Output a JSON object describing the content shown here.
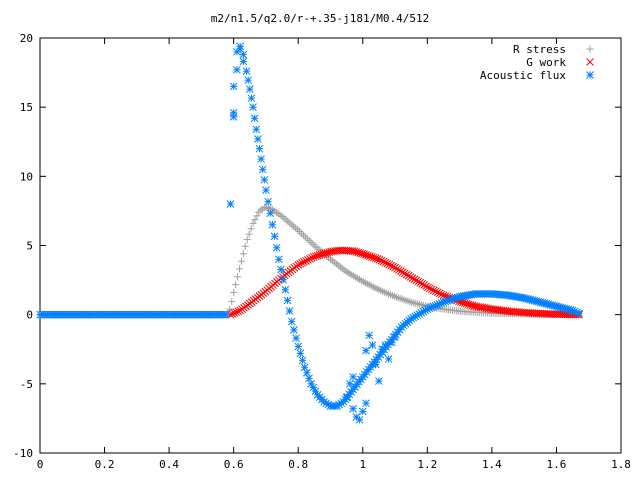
{
  "chart_data": {
    "type": "scatter",
    "title": "m2/n1.5/q2.0/r-+.35-j181/M0.4/512",
    "xlabel": "",
    "ylabel": "",
    "xlim": [
      0,
      1.8
    ],
    "ylim": [
      -10,
      20
    ],
    "x_ticks": [
      "0",
      "0.2",
      "0.4",
      "0.6",
      "0.8",
      "1",
      "1.2",
      "1.4",
      "1.6",
      "1.8"
    ],
    "y_ticks": [
      "-10",
      "-5",
      "0",
      "5",
      "10",
      "15",
      "20"
    ],
    "grid": false,
    "legend_position": "top-right",
    "series": [
      {
        "name": "R stress",
        "color": "#a0a0a0",
        "marker": "plus",
        "x_range": [
          0,
          1.67
        ],
        "points": [
          [
            0,
            0
          ],
          [
            0.58,
            0
          ],
          [
            0.59,
            0.5
          ],
          [
            0.6,
            1.6
          ],
          [
            0.62,
            3.5
          ],
          [
            0.64,
            5.3
          ],
          [
            0.66,
            6.6
          ],
          [
            0.68,
            7.5
          ],
          [
            0.7,
            7.8
          ],
          [
            0.72,
            7.6
          ],
          [
            0.75,
            7.1
          ],
          [
            0.8,
            6.1
          ],
          [
            0.85,
            5.0
          ],
          [
            0.9,
            4.0
          ],
          [
            0.95,
            3.1
          ],
          [
            1.0,
            2.4
          ],
          [
            1.05,
            1.8
          ],
          [
            1.1,
            1.3
          ],
          [
            1.15,
            0.9
          ],
          [
            1.2,
            0.6
          ],
          [
            1.25,
            0.4
          ],
          [
            1.3,
            0.25
          ],
          [
            1.4,
            0.1
          ],
          [
            1.5,
            0.05
          ],
          [
            1.6,
            0.02
          ],
          [
            1.67,
            0
          ]
        ]
      },
      {
        "name": "G work",
        "color": "#ff0000",
        "marker": "cross",
        "x_range": [
          0.59,
          1.67
        ],
        "points": [
          [
            0.59,
            0
          ],
          [
            0.62,
            0.3
          ],
          [
            0.65,
            0.8
          ],
          [
            0.7,
            1.7
          ],
          [
            0.75,
            2.7
          ],
          [
            0.8,
            3.6
          ],
          [
            0.85,
            4.2
          ],
          [
            0.9,
            4.55
          ],
          [
            0.93,
            4.65
          ],
          [
            0.97,
            4.6
          ],
          [
            1.0,
            4.4
          ],
          [
            1.05,
            4.0
          ],
          [
            1.1,
            3.4
          ],
          [
            1.15,
            2.7
          ],
          [
            1.2,
            2.0
          ],
          [
            1.25,
            1.4
          ],
          [
            1.3,
            0.95
          ],
          [
            1.35,
            0.6
          ],
          [
            1.4,
            0.4
          ],
          [
            1.45,
            0.25
          ],
          [
            1.5,
            0.15
          ],
          [
            1.55,
            0.08
          ],
          [
            1.6,
            0.03
          ],
          [
            1.67,
            0
          ]
        ]
      },
      {
        "name": "Acoustic flux",
        "color": "#0080ff",
        "marker": "star",
        "x_range": [
          0,
          1.67
        ],
        "points": [
          [
            0,
            0
          ],
          [
            0.58,
            0
          ],
          [
            0.59,
            8.0
          ],
          [
            0.6,
            14.3
          ],
          [
            0.6,
            14.6
          ],
          [
            0.6,
            16.5
          ],
          [
            0.61,
            17.7
          ],
          [
            0.61,
            19.0
          ],
          [
            0.62,
            19.4
          ],
          [
            0.62,
            19.2
          ],
          [
            0.63,
            18.8
          ],
          [
            0.63,
            18.3
          ],
          [
            0.64,
            17.6
          ],
          [
            0.65,
            16.3
          ],
          [
            0.66,
            15.0
          ],
          [
            0.67,
            13.4
          ],
          [
            0.68,
            12.0
          ],
          [
            0.69,
            10.5
          ],
          [
            0.7,
            9.0
          ],
          [
            0.72,
            6.5
          ],
          [
            0.74,
            4.0
          ],
          [
            0.76,
            1.8
          ],
          [
            0.78,
            -0.5
          ],
          [
            0.8,
            -2.3
          ],
          [
            0.82,
            -3.8
          ],
          [
            0.84,
            -5.0
          ],
          [
            0.86,
            -5.8
          ],
          [
            0.88,
            -6.3
          ],
          [
            0.9,
            -6.6
          ],
          [
            0.92,
            -6.6
          ],
          [
            0.94,
            -6.3
          ],
          [
            0.95,
            -6.0
          ],
          [
            0.96,
            -5.0
          ],
          [
            0.97,
            -4.5
          ],
          [
            0.97,
            -6.8
          ],
          [
            0.98,
            -7.4
          ],
          [
            0.99,
            -7.6
          ],
          [
            1.0,
            -7.0
          ],
          [
            1.01,
            -6.4
          ],
          [
            1.01,
            -2.6
          ],
          [
            1.02,
            -1.5
          ],
          [
            1.03,
            -2.2
          ],
          [
            1.04,
            -3.6
          ],
          [
            1.05,
            -4.8
          ],
          [
            1.06,
            -2.5
          ],
          [
            1.07,
            -2.2
          ],
          [
            1.08,
            -3.2
          ],
          [
            1.09,
            -2.0
          ],
          [
            1.1,
            -1.6
          ],
          [
            1.12,
            -0.9
          ],
          [
            1.15,
            -0.3
          ],
          [
            1.2,
            0.4
          ],
          [
            1.25,
            0.9
          ],
          [
            1.3,
            1.3
          ],
          [
            1.35,
            1.5
          ],
          [
            1.4,
            1.5
          ],
          [
            1.45,
            1.4
          ],
          [
            1.5,
            1.2
          ],
          [
            1.55,
            0.9
          ],
          [
            1.6,
            0.6
          ],
          [
            1.65,
            0.3
          ],
          [
            1.67,
            0.1
          ]
        ]
      }
    ]
  }
}
